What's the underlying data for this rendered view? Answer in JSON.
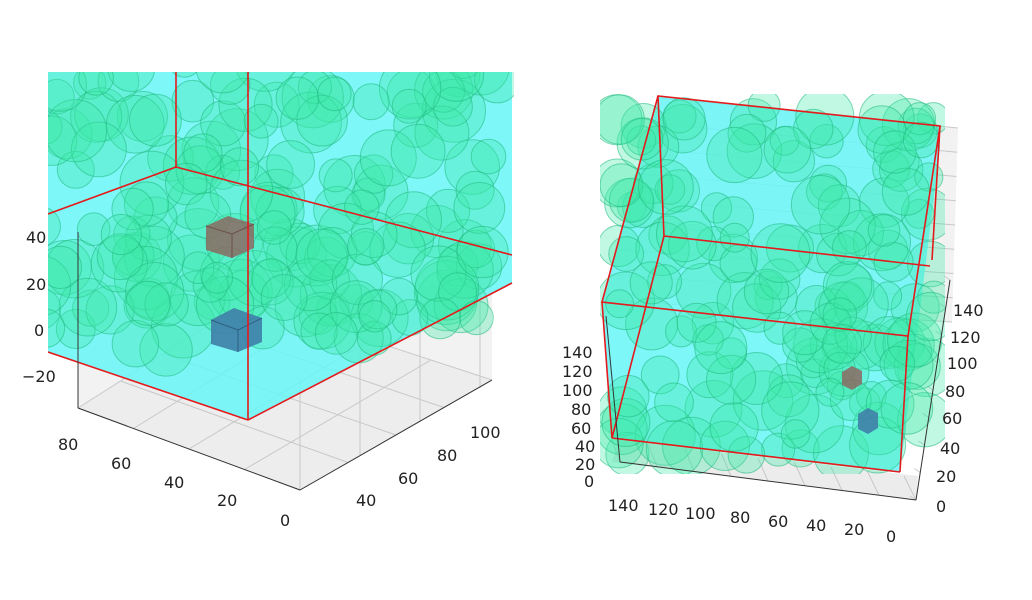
{
  "colors": {
    "box_fill": "#66f6f6",
    "box_edge": "#e41a1c",
    "sphere_fill": "#3ee8a8",
    "sphere_edge": "#1fb87e",
    "cube_brown": "#8a6a62",
    "cube_blue": "#3f7fa8",
    "pane": "#f2f2f2",
    "grid": "#c8c8c8"
  },
  "chart_data": [
    {
      "type": "scatter3d",
      "view": "close-up, elevated, rotated",
      "x_ticks": [
        "40",
        "60",
        "80",
        "100"
      ],
      "y_ticks": [
        "0",
        "20",
        "40",
        "60",
        "80"
      ],
      "z_ticks": [
        "40",
        "20",
        "0",
        "−20"
      ],
      "grid": true,
      "objects": [
        "cyan translucent box with red edges",
        "green translucent spheres",
        "brown cube",
        "blue cube"
      ]
    },
    {
      "type": "scatter3d",
      "view": "tilted top-down",
      "x_ticks": [
        "140",
        "120",
        "100",
        "80",
        "60",
        "40",
        "20",
        "0"
      ],
      "y_ticks": [
        "0",
        "20",
        "40",
        "60",
        "80",
        "100",
        "120",
        "140"
      ],
      "z_ticks": [
        "140",
        "120",
        "100",
        "80",
        "60",
        "40",
        "20",
        "0"
      ],
      "grid": true,
      "objects": [
        "cyan translucent box with red edges",
        "green translucent spheres",
        "brown cube",
        "blue cube"
      ]
    }
  ]
}
